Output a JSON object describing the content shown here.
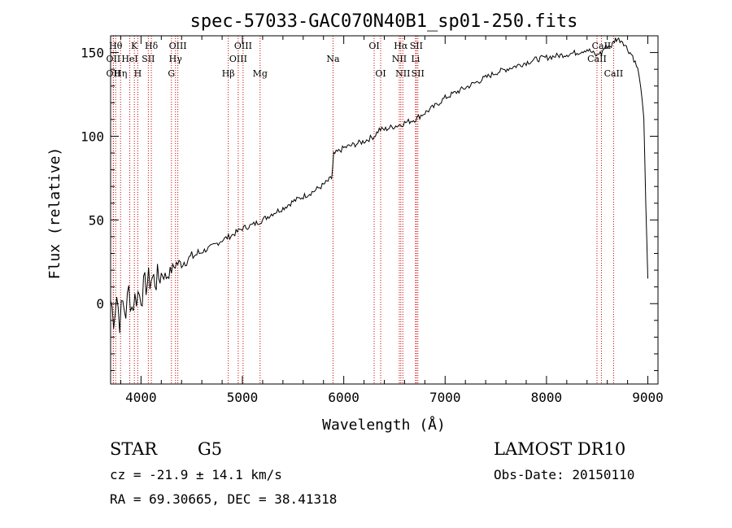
{
  "chart_data": {
    "type": "line",
    "title": "spec-57033-GAC070N40B1_sp01-250.fits",
    "xlabel": "Wavelength (Å)",
    "ylabel": "Flux (relative)",
    "xlim": [
      3700,
      9100
    ],
    "ylim": [
      -48,
      160
    ],
    "xticks": [
      4000,
      5000,
      6000,
      7000,
      8000,
      9000
    ],
    "xtick_labels": [
      "4000",
      "5000",
      "6000",
      "7000",
      "8000",
      "9000"
    ],
    "yticks": [
      0,
      50,
      100,
      150
    ],
    "ytick_labels": [
      "0",
      "50",
      "100",
      "150"
    ],
    "grid": false,
    "line_color": "#000000",
    "line_marker_color": "#cc0000",
    "series": [
      {
        "x": [
          3700,
          3730,
          3760,
          3790,
          3820,
          3850,
          3880,
          3910,
          3940,
          3970,
          4000,
          4050,
          4100,
          4150,
          4200,
          4250,
          4300,
          4350,
          4400,
          4500,
          4600,
          4700,
          4800,
          4900,
          5000,
          5100,
          5200,
          5300,
          5400,
          5500,
          5600,
          5700,
          5800,
          5880,
          5890,
          5900,
          5950,
          6000,
          6100,
          6200,
          6300,
          6350,
          6400,
          6500,
          6563,
          6600,
          6700,
          6800,
          6900,
          7000,
          7100,
          7200,
          7300,
          7400,
          7500,
          7600,
          7700,
          7800,
          7900,
          8000,
          8100,
          8200,
          8300,
          8400,
          8450,
          8498,
          8520,
          8542,
          8560,
          8600,
          8640,
          8662,
          8680,
          8700,
          8750,
          8800,
          8850,
          8900,
          8930,
          8960,
          8980,
          9000
        ],
        "y": [
          2,
          -8,
          5,
          -10,
          0,
          -5,
          8,
          -2,
          3,
          6,
          5,
          12,
          15,
          14,
          18,
          16,
          20,
          24,
          24,
          28,
          31,
          34,
          38,
          41,
          45,
          47,
          50,
          54,
          57,
          61,
          64,
          67,
          71,
          75,
          80,
          89,
          91,
          93,
          95,
          97,
          100,
          104,
          104,
          106,
          107,
          108,
          110,
          114,
          118,
          123,
          126,
          129,
          132,
          135,
          138,
          140,
          142,
          144,
          146,
          147,
          148,
          149,
          150,
          152,
          150,
          148,
          150,
          149,
          152,
          154,
          154,
          156,
          158,
          158,
          157,
          152,
          148,
          140,
          130,
          110,
          60,
          15
        ]
      }
    ],
    "lines": [
      {
        "wave": 3750,
        "label": "Hθ",
        "row": 0
      },
      {
        "wave": 3727,
        "label": "OII",
        "row": 1
      },
      {
        "wave": 3727,
        "label": "OII",
        "row": 2
      },
      {
        "wave": 3798,
        "label": "Hη",
        "row": 2
      },
      {
        "wave": 3889,
        "label": "HeI",
        "row": 1
      },
      {
        "wave": 3934,
        "label": "K",
        "row": 0
      },
      {
        "wave": 3968,
        "label": "H",
        "row": 2
      },
      {
        "wave": 4072,
        "label": "SII",
        "row": 1
      },
      {
        "wave": 4102,
        "label": "Hδ",
        "row": 0
      },
      {
        "wave": 4300,
        "label": "G",
        "row": 2
      },
      {
        "wave": 4340,
        "label": "Hγ",
        "row": 1
      },
      {
        "wave": 4363,
        "label": "OIII",
        "row": 0
      },
      {
        "wave": 4861,
        "label": "Hβ",
        "row": 2
      },
      {
        "wave": 4959,
        "label": "OIII",
        "row": 1
      },
      {
        "wave": 5007,
        "label": "OIII",
        "row": 0
      },
      {
        "wave": 5175,
        "label": "Mg",
        "row": 2
      },
      {
        "wave": 5894,
        "label": "Na",
        "row": 1
      },
      {
        "wave": 6300,
        "label": "OI",
        "row": 0
      },
      {
        "wave": 6364,
        "label": "OI",
        "row": 2
      },
      {
        "wave": 6548,
        "label": "NII",
        "row": 1
      },
      {
        "wave": 6563,
        "label": "Hα",
        "row": 0
      },
      {
        "wave": 6583,
        "label": "NII",
        "row": 2
      },
      {
        "wave": 6708,
        "label": "Li",
        "row": 1
      },
      {
        "wave": 6716,
        "label": "SII",
        "row": 0
      },
      {
        "wave": 6731,
        "label": "SII",
        "row": 2
      },
      {
        "wave": 8498,
        "label": "CaII",
        "row": 1
      },
      {
        "wave": 8542,
        "label": "CaII",
        "row": 0
      },
      {
        "wave": 8662,
        "label": "CaII",
        "row": 2
      }
    ]
  },
  "info": {
    "object_class": "STAR",
    "subclass": "G5",
    "survey": "LAMOST DR10",
    "velocity": "cz = -21.9 ± 14.1 km/s",
    "obs_date": "Obs-Date: 20150110",
    "coords": "RA =  69.30665, DEC =  38.41318"
  }
}
